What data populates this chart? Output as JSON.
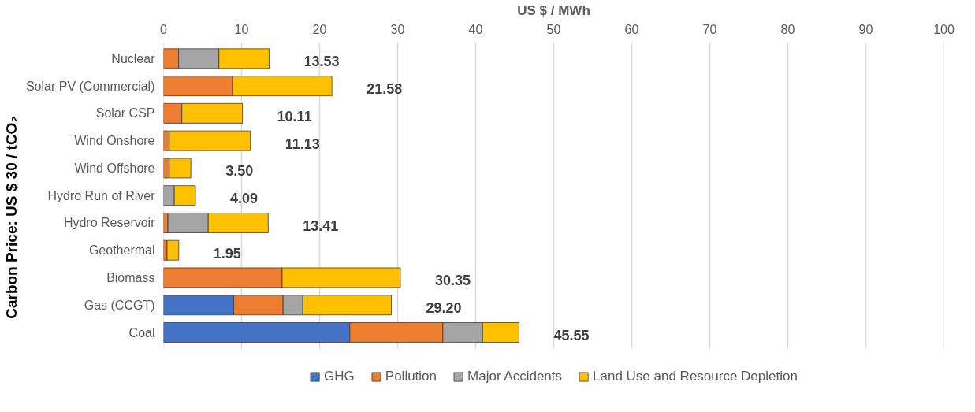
{
  "chart_data": {
    "type": "bar",
    "orientation": "horizontal",
    "stacked": true,
    "xlabel": "US $ / MWh",
    "ylabel": "Carbon Price: US $ 30 / tCO₂",
    "categories": [
      "Nuclear",
      "Solar PV (Commercial)",
      "Solar CSP",
      "Wind Onshore",
      "Wind Offshore",
      "Hydro Run of River",
      "Hydro Reservoir",
      "Geothermal",
      "Biomass",
      "Gas (CCGT)",
      "Coal"
    ],
    "series": [
      {
        "name": "GHG",
        "color": "#4472c4",
        "values": [
          0,
          0,
          0,
          0,
          0,
          0,
          0,
          0,
          0,
          9.0,
          23.87
        ]
      },
      {
        "name": "Pollution",
        "color": "#ed7d31",
        "values": [
          1.93,
          8.85,
          2.34,
          0.74,
          0.74,
          0,
          0.56,
          0.45,
          15.2,
          6.32,
          11.93
        ]
      },
      {
        "name": "Major Accidents",
        "color": "#a5a5a5",
        "values": [
          5.17,
          0,
          0,
          0,
          0,
          1.38,
          5.17,
          0,
          0,
          2.53,
          5.09
        ]
      },
      {
        "name": "Land Use and Resource Depletion",
        "color": "#ffc000",
        "values": [
          6.43,
          12.73,
          7.77,
          10.39,
          2.76,
          2.71,
          7.68,
          1.5,
          15.15,
          11.35,
          4.66
        ]
      }
    ],
    "totals": [
      "13.53",
      "21.58",
      "10.11",
      "11.13",
      "3.50",
      "4.09",
      "13.41",
      "1.95",
      "30.35",
      "29.20",
      "45.55"
    ],
    "xlim": [
      0,
      100
    ],
    "xticks": [
      0,
      10,
      20,
      30,
      40,
      50,
      60,
      70,
      80,
      90,
      100
    ],
    "grid": "x",
    "legend": "bottom"
  }
}
